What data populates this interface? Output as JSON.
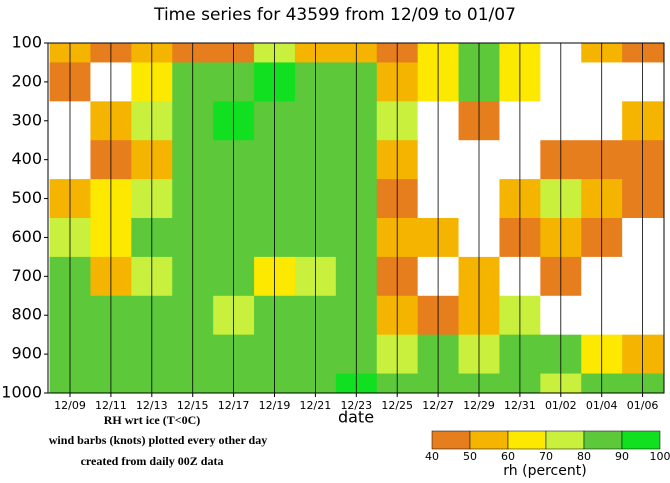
{
  "chart_data": {
    "type": "heatmap",
    "title": "Time series for 43599 from 12/09 to 01/07",
    "xlabel": "date",
    "categories": [
      "12/09",
      "12/11",
      "12/13",
      "12/15",
      "12/17",
      "12/19",
      "12/21",
      "12/23",
      "12/25",
      "12/27",
      "12/29",
      "12/31",
      "01/02",
      "01/04",
      "01/06"
    ],
    "levels": [
      100,
      200,
      300,
      400,
      500,
      600,
      700,
      800,
      900,
      1000
    ],
    "ylim": [
      1000,
      100
    ],
    "yticks": [
      100,
      200,
      300,
      400,
      500,
      600,
      700,
      800,
      900,
      1000
    ],
    "values": [
      [
        50,
        40,
        50,
        45,
        45,
        70,
        50,
        55,
        45,
        60,
        80,
        60,
        35,
        50,
        45
      ],
      [
        45,
        35,
        60,
        80,
        85,
        90,
        85,
        80,
        55,
        65,
        85,
        65,
        30,
        35,
        30
      ],
      [
        30,
        50,
        75,
        85,
        90,
        85,
        80,
        85,
        70,
        35,
        45,
        30,
        30,
        30,
        55
      ],
      [
        30,
        45,
        55,
        80,
        85,
        85,
        80,
        85,
        55,
        30,
        30,
        35,
        45,
        40,
        45
      ],
      [
        55,
        60,
        75,
        80,
        85,
        85,
        85,
        85,
        45,
        30,
        30,
        55,
        75,
        55,
        45
      ],
      [
        70,
        60,
        80,
        85,
        80,
        85,
        85,
        80,
        50,
        55,
        35,
        40,
        55,
        40,
        30
      ],
      [
        80,
        55,
        75,
        80,
        80,
        65,
        75,
        80,
        45,
        30,
        55,
        35,
        45,
        30,
        30
      ],
      [
        85,
        80,
        80,
        85,
        75,
        80,
        85,
        85,
        55,
        45,
        55,
        75,
        35,
        30,
        35
      ],
      [
        80,
        85,
        85,
        80,
        85,
        85,
        80,
        80,
        75,
        80,
        75,
        85,
        80,
        65,
        55
      ],
      [
        85,
        85,
        85,
        80,
        85,
        85,
        85,
        90,
        85,
        80,
        85,
        85,
        75,
        80,
        80
      ]
    ],
    "notes": [
      "RH wrt ice (T<0C)",
      "wind barbs (knots) plotted every other day",
      "created from daily 00Z data"
    ],
    "colorbar": {
      "label": "rh (percent)",
      "bins": [
        40,
        50,
        60,
        70,
        80,
        90,
        100
      ],
      "colors": [
        "#e67e1e",
        "#f4b400",
        "#fde800",
        "#c8f03c",
        "#5cc83a",
        "#10e020"
      ]
    }
  }
}
